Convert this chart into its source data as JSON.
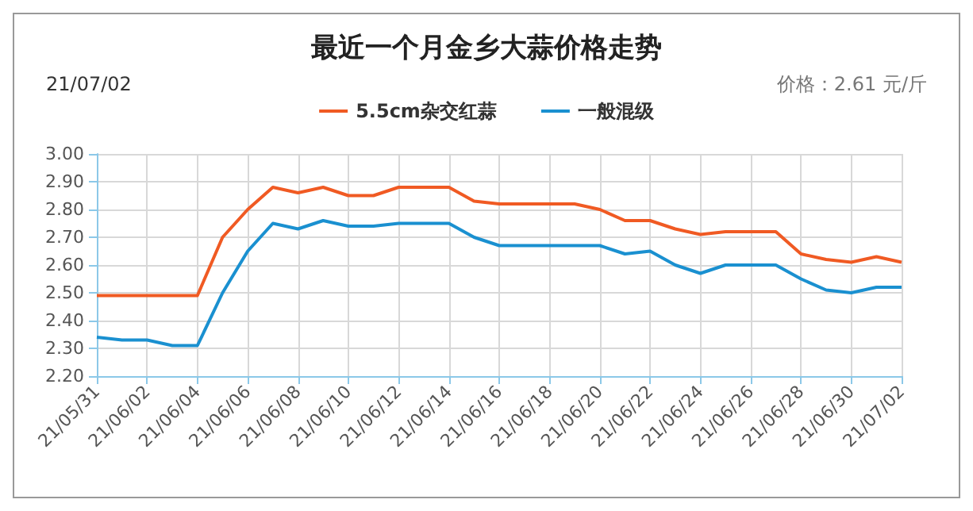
{
  "chart_data": {
    "type": "line",
    "title": "最近一个月金乡大蒜价格走势",
    "annotations": [
      "21/07/02",
      "价格：2.61 元/斤"
    ],
    "categories": [
      "21/05/31",
      null,
      "21/06/02",
      null,
      "21/06/04",
      null,
      "21/06/06",
      null,
      "21/06/08",
      null,
      "21/06/10",
      null,
      "21/06/12",
      null,
      "21/06/14",
      null,
      "21/06/16",
      null,
      "21/06/18",
      null,
      "21/06/20",
      null,
      "21/06/22",
      null,
      "21/06/24",
      null,
      "21/06/26",
      null,
      "21/06/28",
      null,
      "21/06/30",
      null,
      "21/07/02"
    ],
    "series": [
      {
        "name": "5.5cm杂交红蒜",
        "color": "#f05a23",
        "values": [
          2.49,
          2.49,
          2.49,
          2.49,
          2.49,
          2.7,
          2.8,
          2.88,
          2.86,
          2.88,
          2.85,
          2.85,
          2.88,
          2.88,
          2.88,
          2.83,
          2.82,
          2.82,
          2.82,
          2.82,
          2.8,
          2.76,
          2.76,
          2.73,
          2.71,
          2.72,
          2.72,
          2.72,
          2.64,
          2.62,
          2.61,
          2.63,
          2.61
        ]
      },
      {
        "name": "一般混级",
        "color": "#1a90d0",
        "values": [
          2.34,
          2.33,
          2.33,
          2.31,
          2.31,
          2.5,
          2.65,
          2.75,
          2.73,
          2.76,
          2.74,
          2.74,
          2.75,
          2.75,
          2.75,
          2.7,
          2.67,
          2.67,
          2.67,
          2.67,
          2.67,
          2.64,
          2.65,
          2.6,
          2.57,
          2.6,
          2.6,
          2.6,
          2.55,
          2.51,
          2.5,
          2.52,
          2.52
        ]
      }
    ],
    "ylim": [
      2.2,
      3.0
    ],
    "yticks": [
      {
        "value": 2.2,
        "label": "2.20"
      },
      {
        "value": 2.3,
        "label": "2.30"
      },
      {
        "value": 2.4,
        "label": "2.40"
      },
      {
        "value": 2.5,
        "label": "2.50"
      },
      {
        "value": 2.6,
        "label": "2.60"
      },
      {
        "value": 2.7,
        "label": "2.70"
      },
      {
        "value": 2.8,
        "label": "2.80"
      },
      {
        "value": 2.9,
        "label": "2.90"
      },
      {
        "value": 3.0,
        "label": "3.00"
      }
    ],
    "grid": true,
    "legend": "top",
    "marker": "none",
    "line_style": "solid"
  }
}
